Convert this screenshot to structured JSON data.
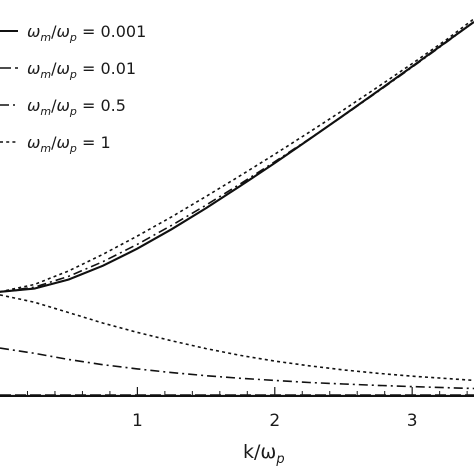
{
  "chart_data": {
    "type": "line",
    "xlabel": {
      "main": "k/ω",
      "sub": "p"
    },
    "x_ticks": [
      {
        "value": 1,
        "label": "1"
      },
      {
        "value": 2,
        "label": "2"
      },
      {
        "value": 3,
        "label": "3"
      }
    ],
    "xlim": [
      0,
      3.45
    ],
    "ylim": [
      0,
      3.8
    ],
    "grid": false,
    "legend_position": "top-left",
    "series": [
      {
        "name": "ωm/ωp = 0.001",
        "legend": {
          "w1": "ω",
          "s1": "m",
          "sep": "/",
          "w2": "ω",
          "s2": "p",
          "value": " = 0.001"
        },
        "style": "solid",
        "branches": [
          {
            "x": [
              0,
              0.25,
              0.5,
              0.75,
              1.0,
              1.25,
              1.5,
              1.75,
              2.0,
              2.25,
              2.5,
              2.75,
              3.0,
              3.25,
              3.45
            ],
            "y": [
              1.0,
              1.031,
              1.118,
              1.25,
              1.414,
              1.601,
              1.803,
              2.016,
              2.236,
              2.462,
              2.693,
              2.926,
              3.162,
              3.4,
              3.59
            ]
          },
          {
            "x": [
              0,
              0.5,
              1.0,
              1.5,
              2.0,
              2.5,
              3.0,
              3.45
            ],
            "y": [
              0.001,
              0.001,
              0.001,
              0.001,
              0.001,
              0.001,
              0.001,
              0.001
            ]
          }
        ]
      },
      {
        "name": "ωm/ωp = 0.01",
        "legend": {
          "w1": "ω",
          "s1": "m",
          "sep": "/",
          "w2": "ω",
          "s2": "p",
          "value": " = 0.01"
        },
        "style": "dashed",
        "branches": [
          {
            "x": [
              0,
              0.25,
              0.5,
              0.75,
              1.0,
              1.25,
              1.5,
              1.75,
              2.0,
              2.25,
              2.5,
              2.75,
              3.0,
              3.25,
              3.45
            ],
            "y": [
              1.0,
              1.031,
              1.118,
              1.25,
              1.414,
              1.601,
              1.803,
              2.016,
              2.236,
              2.462,
              2.693,
              2.926,
              3.162,
              3.4,
              3.59
            ]
          },
          {
            "x": [
              0,
              0.5,
              1.0,
              1.5,
              2.0,
              2.5,
              3.0,
              3.45
            ],
            "y": [
              0.01,
              0.01,
              0.01,
              0.01,
              0.01,
              0.01,
              0.01,
              0.01
            ]
          }
        ]
      },
      {
        "name": "ωm/ωp = 0.5",
        "legend": {
          "w1": "ω",
          "s1": "m",
          "sep": "/",
          "w2": "ω",
          "s2": "p",
          "value": " = 0.5"
        },
        "style": "dashdot",
        "branches": [
          {
            "x": [
              0,
              0.25,
              0.5,
              0.75,
              1.0,
              1.25,
              1.5,
              1.75,
              2.0,
              2.25,
              2.5,
              2.75,
              3.0,
              3.25,
              3.45
            ],
            "y": [
              1.0,
              1.044,
              1.149,
              1.29,
              1.456,
              1.638,
              1.832,
              2.036,
              2.248,
              2.466,
              2.69,
              2.92,
              3.155,
              3.395,
              3.59
            ]
          },
          {
            "x": [
              0,
              0.25,
              0.5,
              0.75,
              1.0,
              1.25,
              1.5,
              1.75,
              2.0,
              2.25,
              2.5,
              2.75,
              3.0,
              3.25,
              3.45
            ],
            "y": [
              0.46,
              0.41,
              0.35,
              0.3,
              0.26,
              0.225,
              0.195,
              0.17,
              0.15,
              0.13,
              0.115,
              0.102,
              0.09,
              0.08,
              0.072
            ]
          }
        ]
      },
      {
        "name": "ωm/ωp = 1",
        "legend": {
          "w1": "ω",
          "s1": "m",
          "sep": "/",
          "w2": "ω",
          "s2": "p",
          "value": " = 1"
        },
        "style": "dotted",
        "branches": [
          {
            "x": [
              0,
              0.25,
              0.5,
              0.75,
              1.0,
              1.25,
              1.5,
              1.75,
              2.0,
              2.25,
              2.5,
              2.75,
              3.0,
              3.25,
              3.45
            ],
            "y": [
              1.0,
              1.07,
              1.2,
              1.36,
              1.535,
              1.72,
              1.915,
              2.115,
              2.32,
              2.53,
              2.745,
              2.965,
              3.19,
              3.42,
              3.62
            ]
          },
          {
            "x": [
              0,
              0.25,
              0.5,
              0.75,
              1.0,
              1.25,
              1.5,
              1.75,
              2.0,
              2.25,
              2.5,
              2.75,
              3.0,
              3.25,
              3.45
            ],
            "y": [
              0.97,
              0.9,
              0.8,
              0.7,
              0.61,
              0.53,
              0.455,
              0.39,
              0.335,
              0.29,
              0.25,
              0.218,
              0.19,
              0.168,
              0.15
            ]
          }
        ]
      }
    ]
  }
}
